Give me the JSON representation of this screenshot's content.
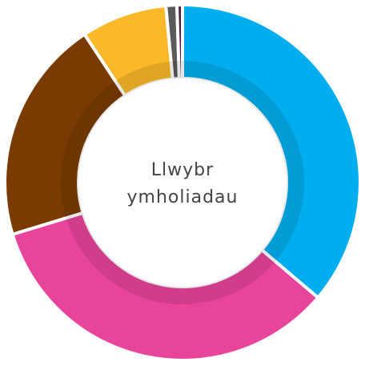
{
  "chart_data": {
    "type": "donut",
    "title": "Llwybr ymholiadau",
    "values": [
      36.2,
      34.1,
      20.4,
      7.8,
      1.0,
      0.5
    ],
    "colors": [
      "#00aeef",
      "#e8449a",
      "#7a3b00",
      "#fbb829",
      "#5a5a5a",
      "#4a1a3a"
    ]
  }
}
